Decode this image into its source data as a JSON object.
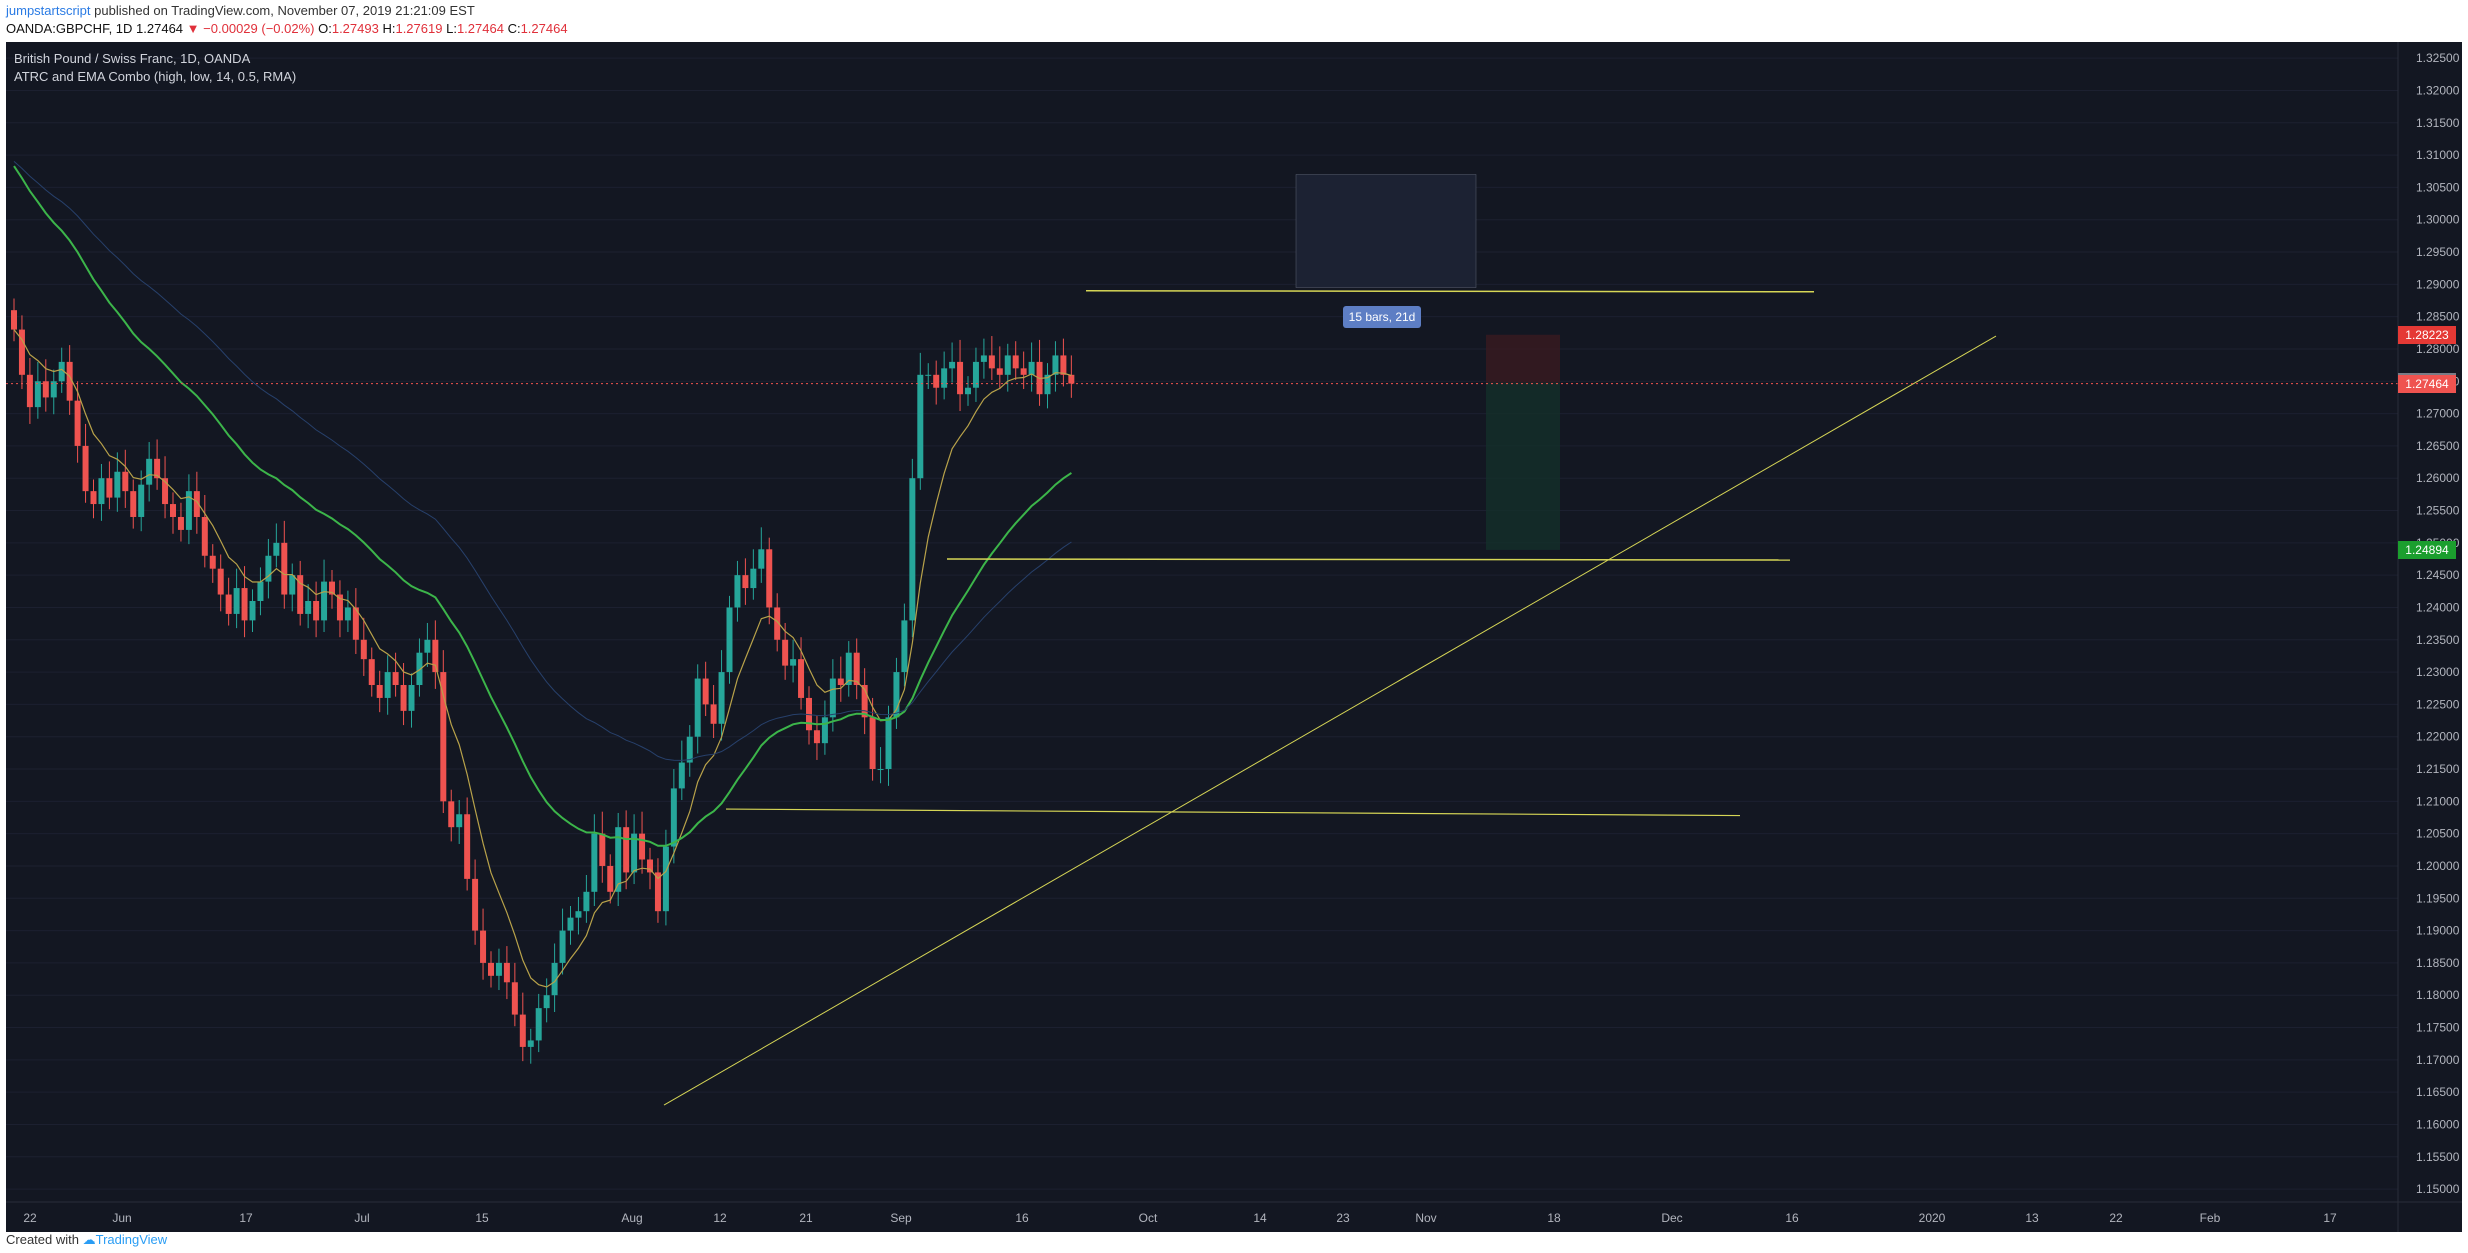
{
  "header": {
    "author": "jumpstartscript",
    "published_text": "published on TradingView.com, November 07, 2019 21:21:09 EST",
    "symbol": "OANDA:GBPCHF, 1D",
    "last": "1.27464",
    "change": "−0.00029 (−0.02%)",
    "o_label": "O:",
    "o_value": "1.27493",
    "h_label": "H:",
    "h_value": "1.27619",
    "l_label": "L:",
    "l_value": "1.27464",
    "c_label": "C:",
    "c_value": "1.27464"
  },
  "legend": {
    "title": "British Pound / Swiss Franc, 1D, OANDA",
    "indicator": "ATRC and EMA Combo (high, low, 14, 0.5, RMA)"
  },
  "price_axis": {
    "ticks": [
      "1.32500",
      "1.32000",
      "1.31500",
      "1.31000",
      "1.30500",
      "1.30000",
      "1.29500",
      "1.29000",
      "1.28500",
      "1.28000",
      "1.27500",
      "1.27000",
      "1.26500",
      "1.26000",
      "1.25500",
      "1.25000",
      "1.24500",
      "1.24000",
      "1.23500",
      "1.23000",
      "1.22500",
      "1.22000",
      "1.21500",
      "1.21000",
      "1.20500",
      "1.20000",
      "1.19500",
      "1.19000",
      "1.18500",
      "1.18000",
      "1.17500",
      "1.17000",
      "1.16500",
      "1.16000",
      "1.15500",
      "1.15000"
    ],
    "tags": [
      {
        "text": "1.28223",
        "color": "#e53935"
      },
      {
        "text": "1.27482",
        "color": "#787b86"
      },
      {
        "text": "1.27464",
        "color": "#ef5350"
      },
      {
        "text": "1.24894",
        "color": "#1b9e2e"
      }
    ]
  },
  "time_axis": {
    "labels": [
      "22",
      "Jun",
      "17",
      "Jul",
      "15",
      "Aug",
      "12",
      "21",
      "Sep",
      "16",
      "Oct",
      "14",
      "23",
      "Nov",
      "18",
      "Dec",
      "16",
      "2020",
      "13",
      "22",
      "Feb",
      "17"
    ]
  },
  "measure_tool": {
    "label": "15 bars, 21d"
  },
  "footer": {
    "created_with": "Created with",
    "brand": "TradingView"
  },
  "colors": {
    "background": "#131722",
    "bull": "#26a69a",
    "bear": "#ef5350",
    "ema_fast": "#b8a24a",
    "ema_slow": "#3cb54a",
    "trendline": "#d6d656"
  },
  "chart_data": {
    "type": "candlestick",
    "ylim": [
      1.148,
      1.3275
    ],
    "closes": [
      1.283,
      1.276,
      1.271,
      1.275,
      1.2725,
      1.275,
      1.278,
      1.272,
      1.265,
      1.258,
      1.256,
      1.26,
      1.257,
      1.261,
      1.258,
      1.254,
      1.259,
      1.263,
      1.26,
      1.256,
      1.254,
      1.252,
      1.258,
      1.254,
      1.248,
      1.246,
      1.242,
      1.239,
      1.243,
      1.238,
      1.241,
      1.244,
      1.248,
      1.25,
      1.242,
      1.245,
      1.239,
      1.241,
      1.238,
      1.244,
      1.242,
      1.238,
      1.24,
      1.235,
      1.232,
      1.228,
      1.226,
      1.23,
      1.228,
      1.224,
      1.228,
      1.233,
      1.235,
      1.23,
      1.21,
      1.206,
      1.208,
      1.198,
      1.19,
      1.185,
      1.183,
      1.185,
      1.182,
      1.177,
      1.172,
      1.173,
      1.178,
      1.18,
      1.185,
      1.19,
      1.192,
      1.193,
      1.196,
      1.205,
      1.2,
      1.196,
      1.206,
      1.199,
      1.205,
      1.201,
      1.199,
      1.193,
      1.203,
      1.212,
      1.216,
      1.22,
      1.229,
      1.225,
      1.222,
      1.23,
      1.24,
      1.245,
      1.243,
      1.246,
      1.249,
      1.24,
      1.235,
      1.231,
      1.232,
      1.226,
      1.221,
      1.219,
      1.223,
      1.229,
      1.228,
      1.233,
      1.228,
      1.223,
      1.215,
      1.215,
      1.223,
      1.23,
      1.238,
      1.26,
      1.276,
      1.276,
      1.274,
      1.277,
      1.278,
      1.273,
      1.274,
      1.278,
      1.279,
      1.277,
      1.276,
      1.279,
      1.277,
      1.276,
      1.278,
      1.273,
      1.276,
      1.279,
      1.276,
      1.27464
    ],
    "hlines": [
      1.289,
      1.2475
    ],
    "measure_range": [
      1.307,
      1.2895
    ]
  }
}
